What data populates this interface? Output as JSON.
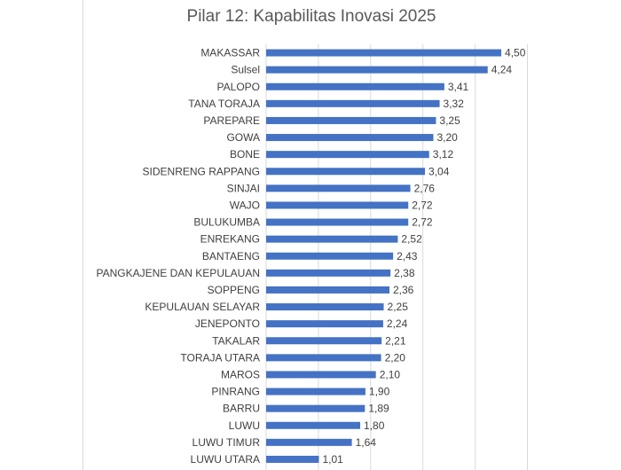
{
  "chart_data": {
    "type": "bar",
    "orientation": "horizontal",
    "title": "Pilar 12: Kapabilitas Inovasi 2025",
    "xlabel": "",
    "ylabel": "",
    "xlim": [
      0,
      5
    ],
    "grid": true,
    "legend": "none",
    "bar_color": "#4472c4",
    "categories": [
      "MAKASSAR",
      "Sulsel",
      "PALOPO",
      "TANA TORAJA",
      "PAREPARE",
      "GOWA",
      "BONE",
      "SIDENRENG RAPPANG",
      "SINJAI",
      "WAJO",
      "BULUKUMBA",
      "ENREKANG",
      "BANTAENG",
      "PANGKAJENE DAN KEPULAUAN",
      "SOPPENG",
      "KEPULAUAN SELAYAR",
      "JENEPONTO",
      "TAKALAR",
      "TORAJA UTARA",
      "MAROS",
      "PINRANG",
      "BARRU",
      "LUWU",
      "LUWU TIMUR",
      "LUWU UTARA"
    ],
    "values": [
      4.5,
      4.24,
      3.41,
      3.32,
      3.25,
      3.2,
      3.12,
      3.04,
      2.76,
      2.72,
      2.72,
      2.52,
      2.43,
      2.38,
      2.36,
      2.25,
      2.24,
      2.21,
      2.2,
      2.1,
      1.9,
      1.89,
      1.8,
      1.64,
      1.01
    ],
    "value_labels": [
      "4,50",
      "4,24",
      "3,41",
      "3,32",
      "3,25",
      "3,20",
      "3,12",
      "3,04",
      "2,76",
      "2,72",
      "2,72",
      "2,52",
      "2,43",
      "2,38",
      "2,36",
      "2,25",
      "2,24",
      "2,21",
      "2,20",
      "2,10",
      "1,90",
      "1,89",
      "1,80",
      "1,64",
      "1,01"
    ]
  }
}
